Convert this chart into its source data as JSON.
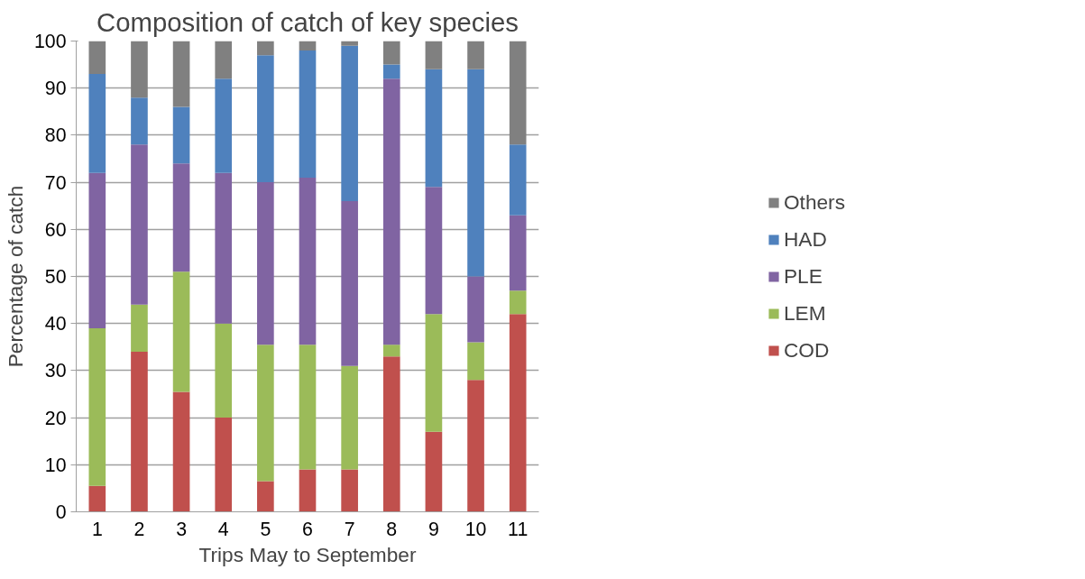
{
  "chart_data": {
    "type": "bar",
    "stacked": true,
    "title": "Composition of catch of key species",
    "xlabel": "Trips May to September",
    "ylabel": "Percentage of catch",
    "categories": [
      "1",
      "2",
      "3",
      "4",
      "5",
      "6",
      "7",
      "8",
      "9",
      "10",
      "11"
    ],
    "series": [
      {
        "name": "COD",
        "color": "#c0504d",
        "values": [
          5.5,
          34,
          25.5,
          20,
          6.5,
          9,
          9,
          33,
          17,
          28,
          42
        ]
      },
      {
        "name": "LEM",
        "color": "#9bbb59",
        "values": [
          33.5,
          10,
          25.5,
          20,
          29,
          26.5,
          22,
          2.5,
          25,
          8,
          5
        ]
      },
      {
        "name": "PLE",
        "color": "#8064a2",
        "values": [
          33,
          34,
          23,
          32,
          34.5,
          35.5,
          35,
          56.5,
          27,
          14,
          16
        ]
      },
      {
        "name": "HAD",
        "color": "#4f81bd",
        "values": [
          21,
          10,
          12,
          20,
          27,
          27,
          33,
          3,
          25,
          44,
          15
        ]
      },
      {
        "name": "Others",
        "color": "#808080",
        "values": [
          7,
          12,
          14,
          8,
          3,
          2,
          1,
          5,
          6,
          6,
          22
        ]
      }
    ],
    "ylim": [
      0,
      100
    ],
    "yticks": [
      0,
      10,
      20,
      30,
      40,
      50,
      60,
      70,
      80,
      90,
      100
    ],
    "grid": "y",
    "legend": "right"
  }
}
